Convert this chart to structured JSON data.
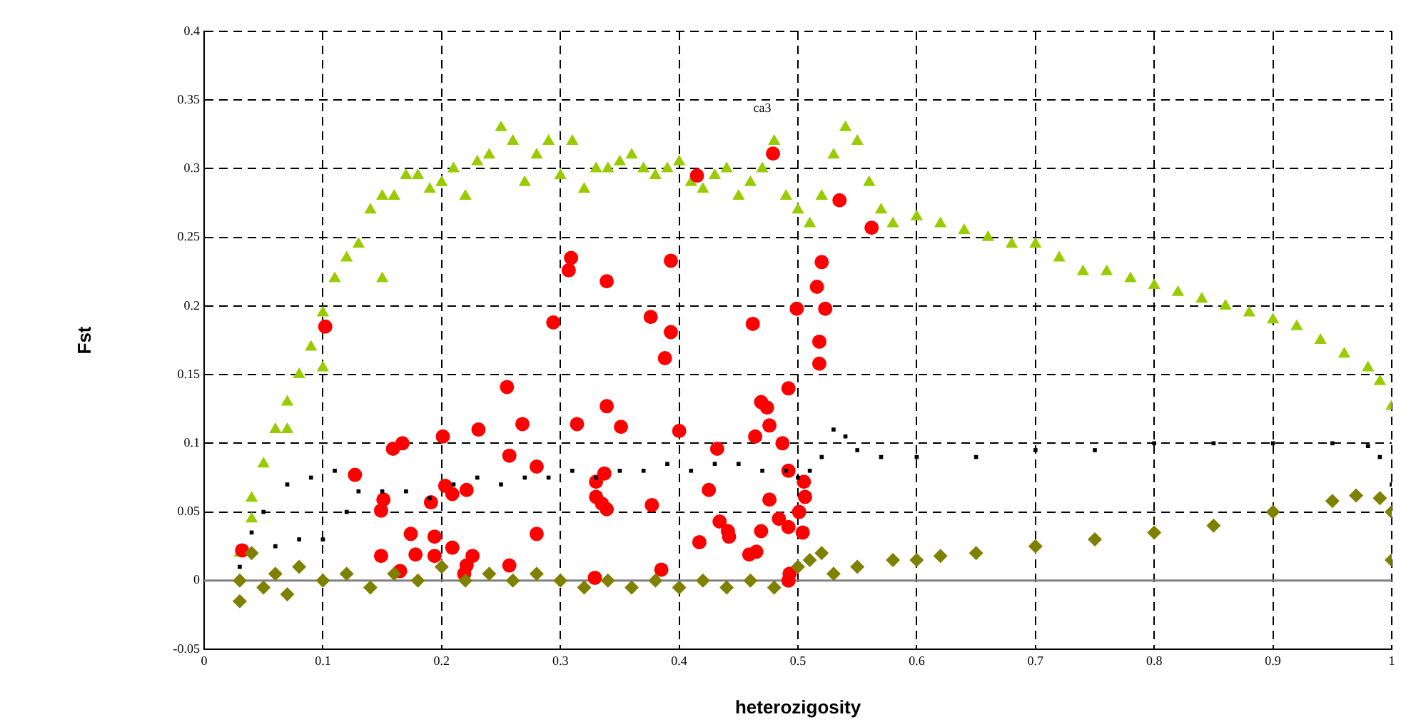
{
  "chart_data": {
    "type": "scatter",
    "xlabel": "heterozigosity",
    "ylabel": "Fst",
    "xlim": [
      0,
      1
    ],
    "ylim": [
      -0.05,
      0.4
    ],
    "xticks": [
      0,
      0.1,
      0.2,
      0.3,
      0.4,
      0.5,
      0.6,
      0.7,
      0.8,
      0.9,
      1
    ],
    "yticks": [
      -0.05,
      0,
      0.05,
      0.1,
      0.15,
      0.2,
      0.25,
      0.3,
      0.35,
      0.4
    ],
    "grid": true,
    "legend": false,
    "ref_lines": [
      {
        "axis": "y",
        "value": 0,
        "color": "#808080",
        "line_style": "solid"
      }
    ],
    "annotations": [
      "ca3"
    ],
    "series": [
      {
        "color": "#99cc00",
        "marker": "triangle",
        "x": [
          0.03,
          0.04,
          0.04,
          0.05,
          0.06,
          0.07,
          0.07,
          0.08,
          0.09,
          0.1,
          0.1,
          0.11,
          0.12,
          0.13,
          0.14,
          0.15,
          0.15,
          0.16,
          0.17,
          0.18,
          0.19,
          0.2,
          0.21,
          0.22,
          0.23,
          0.24,
          0.25,
          0.26,
          0.27,
          0.28,
          0.29,
          0.3,
          0.31,
          0.32,
          0.33,
          0.34,
          0.35,
          0.36,
          0.37,
          0.38,
          0.39,
          0.4,
          0.41,
          0.42,
          0.43,
          0.44,
          0.45,
          0.46,
          0.47,
          0.48,
          0.49,
          0.5,
          0.51,
          0.52,
          0.53,
          0.54,
          0.55,
          0.56,
          0.57,
          0.58,
          0.6,
          0.62,
          0.64,
          0.66,
          0.68,
          0.7,
          0.72,
          0.74,
          0.76,
          0.78,
          0.8,
          0.82,
          0.84,
          0.86,
          0.88,
          0.9,
          0.92,
          0.94,
          0.96,
          0.98,
          0.99,
          1.0
        ],
        "values": [
          0.02,
          0.045,
          0.06,
          0.085,
          0.11,
          0.13,
          0.11,
          0.15,
          0.17,
          0.195,
          0.155,
          0.22,
          0.235,
          0.245,
          0.27,
          0.28,
          0.22,
          0.28,
          0.295,
          0.295,
          0.285,
          0.29,
          0.3,
          0.28,
          0.305,
          0.31,
          0.33,
          0.32,
          0.29,
          0.31,
          0.32,
          0.295,
          0.32,
          0.285,
          0.3,
          0.3,
          0.305,
          0.31,
          0.3,
          0.295,
          0.3,
          0.305,
          0.29,
          0.285,
          0.295,
          0.3,
          0.28,
          0.29,
          0.3,
          0.32,
          0.28,
          0.27,
          0.26,
          0.28,
          0.31,
          0.33,
          0.32,
          0.29,
          0.27,
          0.26,
          0.265,
          0.26,
          0.255,
          0.25,
          0.245,
          0.245,
          0.235,
          0.225,
          0.225,
          0.22,
          0.215,
          0.21,
          0.205,
          0.2,
          0.195,
          0.19,
          0.185,
          0.175,
          0.165,
          0.155,
          0.145,
          0.127
        ]
      },
      {
        "color": "#ff0000",
        "marker": "circle",
        "x": [
          0.102,
          0.032,
          0.309,
          0.307,
          0.339,
          0.294,
          0.255,
          0.339,
          0.268,
          0.231,
          0.314,
          0.351,
          0.201,
          0.167,
          0.159,
          0.257,
          0.28,
          0.127,
          0.33,
          0.337,
          0.203,
          0.209,
          0.221,
          0.151,
          0.149,
          0.191,
          0.33,
          0.335,
          0.339,
          0.174,
          0.194,
          0.28,
          0.209,
          0.149,
          0.178,
          0.194,
          0.226,
          0.221,
          0.165,
          0.219,
          0.257,
          0.329,
          0.479,
          0.415,
          0.535,
          0.562,
          0.393,
          0.52,
          0.516,
          0.499,
          0.523,
          0.376,
          0.393,
          0.462,
          0.518,
          0.388,
          0.518,
          0.492,
          0.469,
          0.474,
          0.4,
          0.476,
          0.464,
          0.487,
          0.432,
          0.492,
          0.505,
          0.506,
          0.425,
          0.476,
          0.377,
          0.501,
          0.434,
          0.484,
          0.492,
          0.504,
          0.469,
          0.442,
          0.441,
          0.417,
          0.465,
          0.459,
          0.385,
          0.493,
          0.492
        ],
        "values": [
          0.185,
          0.022,
          0.235,
          0.226,
          0.218,
          0.188,
          0.141,
          0.127,
          0.114,
          0.11,
          0.114,
          0.112,
          0.105,
          0.1,
          0.096,
          0.091,
          0.083,
          0.077,
          0.072,
          0.078,
          0.069,
          0.063,
          0.066,
          0.059,
          0.051,
          0.057,
          0.061,
          0.056,
          0.052,
          0.034,
          0.032,
          0.034,
          0.024,
          0.018,
          0.019,
          0.018,
          0.018,
          0.011,
          0.007,
          0.005,
          0.011,
          0.002,
          0.311,
          0.295,
          0.277,
          0.257,
          0.233,
          0.232,
          0.214,
          0.198,
          0.198,
          0.192,
          0.181,
          0.187,
          0.174,
          0.162,
          0.158,
          0.14,
          0.13,
          0.126,
          0.109,
          0.113,
          0.105,
          0.1,
          0.096,
          0.08,
          0.072,
          0.061,
          0.066,
          0.059,
          0.055,
          0.05,
          0.043,
          0.045,
          0.039,
          0.035,
          0.036,
          0.032,
          0.036,
          0.028,
          0.021,
          0.019,
          0.008,
          0.005,
          0.0
        ]
      },
      {
        "color": "#000000",
        "marker": "square",
        "x": [
          0.03,
          0.04,
          0.05,
          0.06,
          0.07,
          0.08,
          0.09,
          0.1,
          0.11,
          0.12,
          0.13,
          0.15,
          0.17,
          0.19,
          0.21,
          0.23,
          0.25,
          0.27,
          0.29,
          0.31,
          0.33,
          0.35,
          0.37,
          0.39,
          0.41,
          0.43,
          0.45,
          0.47,
          0.49,
          0.5,
          0.51,
          0.52,
          0.53,
          0.54,
          0.55,
          0.57,
          0.6,
          0.65,
          0.7,
          0.75,
          0.8,
          0.85,
          0.9,
          0.95,
          0.98,
          0.99,
          1.0
        ],
        "values": [
          0.01,
          0.035,
          0.05,
          0.025,
          0.07,
          0.03,
          0.075,
          0.03,
          0.08,
          0.05,
          0.065,
          0.065,
          0.065,
          0.06,
          0.07,
          0.075,
          0.07,
          0.075,
          0.075,
          0.08,
          0.075,
          0.08,
          0.08,
          0.085,
          0.08,
          0.085,
          0.085,
          0.08,
          0.08,
          0.075,
          0.08,
          0.09,
          0.11,
          0.105,
          0.095,
          0.09,
          0.09,
          0.09,
          0.095,
          0.095,
          0.1,
          0.1,
          0.1,
          0.1,
          0.098,
          0.09,
          0.07
        ]
      },
      {
        "color": "#808000",
        "marker": "diamond",
        "x": [
          0.03,
          0.03,
          0.04,
          0.05,
          0.06,
          0.07,
          0.08,
          0.1,
          0.12,
          0.14,
          0.16,
          0.18,
          0.2,
          0.22,
          0.24,
          0.26,
          0.28,
          0.3,
          0.32,
          0.34,
          0.36,
          0.38,
          0.4,
          0.42,
          0.44,
          0.46,
          0.48,
          0.5,
          0.51,
          0.52,
          0.53,
          0.55,
          0.58,
          0.6,
          0.62,
          0.65,
          0.7,
          0.75,
          0.8,
          0.85,
          0.9,
          0.95,
          0.97,
          0.99,
          1.0,
          1.0
        ],
        "values": [
          0.0,
          -0.015,
          0.02,
          -0.005,
          0.005,
          -0.01,
          0.01,
          0.0,
          0.005,
          -0.005,
          0.005,
          0.0,
          0.01,
          0.0,
          0.005,
          0.0,
          0.005,
          0.0,
          -0.005,
          0.0,
          -0.005,
          0.0,
          -0.005,
          0.0,
          -0.005,
          0.0,
          -0.005,
          0.01,
          0.015,
          0.02,
          0.005,
          0.01,
          0.015,
          0.015,
          0.018,
          0.02,
          0.025,
          0.03,
          0.035,
          0.04,
          0.05,
          0.058,
          0.062,
          0.06,
          0.05,
          0.015
        ]
      }
    ]
  }
}
